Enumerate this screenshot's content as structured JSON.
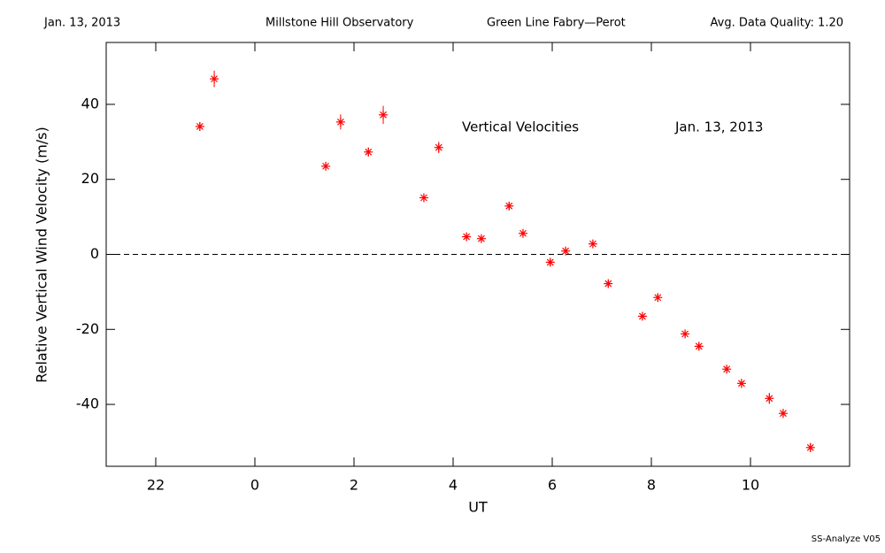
{
  "header": {
    "date": "Jan. 13, 2013",
    "observatory": "Millstone Hill Observatory",
    "instrument": "Green Line Fabry—Perot",
    "quality": "Avg. Data Quality: 1.20"
  },
  "footer": "SS-Analyze V05",
  "chart_data": {
    "type": "scatter",
    "annotations": [
      "Vertical Velocities",
      "Jan. 13, 2013"
    ],
    "xlabel": "UT",
    "ylabel": "Relative Vertical Wind Velocity (m/s)",
    "x": [
      -1.11,
      -0.82,
      1.43,
      1.73,
      2.29,
      2.59,
      3.41,
      3.71,
      4.27,
      4.57,
      5.13,
      5.41,
      5.96,
      6.27,
      6.82,
      7.13,
      7.82,
      8.13,
      8.68,
      8.96,
      9.52,
      9.82,
      10.38,
      10.66,
      11.21
    ],
    "values": [
      34.1,
      46.8,
      23.5,
      35.3,
      27.3,
      37.2,
      15.1,
      28.5,
      4.7,
      4.2,
      12.9,
      5.6,
      -2.1,
      0.9,
      2.8,
      -7.8,
      -16.5,
      -11.5,
      -21.2,
      -24.5,
      -30.6,
      -34.4,
      -38.4,
      -42.4,
      -51.5
    ],
    "errors": [
      1.2,
      2.2,
      1,
      2,
      1.2,
      2.4,
      1,
      1.5,
      1,
      1,
      1,
      1,
      1,
      1,
      1,
      1,
      1,
      1,
      1,
      1,
      1,
      1.2,
      1.5,
      1.2,
      1.2
    ],
    "color": "#ff0000",
    "xlim": [
      -3,
      12
    ],
    "xticks": [
      {
        "value": -2,
        "label": "22"
      },
      0,
      2,
      4,
      6,
      8,
      10
    ],
    "ylim": [
      -56.5,
      56.5
    ],
    "yticks": [
      -40,
      -20,
      0,
      20,
      40
    ],
    "hline": 0
  }
}
